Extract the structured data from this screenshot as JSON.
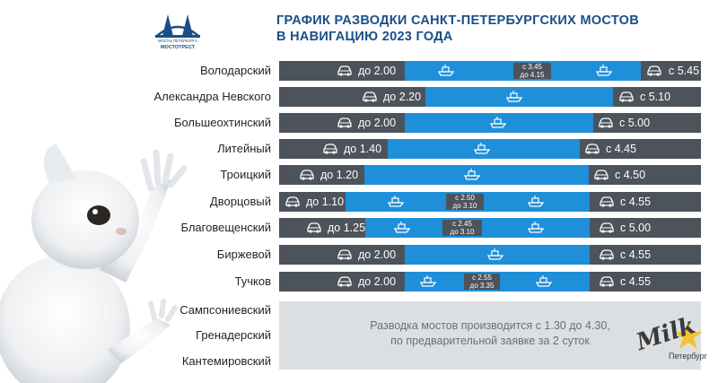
{
  "title": {
    "line1": "ГРАФИК РАЗВОДКИ САНКТ-ПЕТЕРБУРГСКИХ МОСТОВ",
    "line2": "В НАВИГАЦИЮ 2023 ГОДА"
  },
  "logo": {
    "caption_top": "МОСТЫ ПЕТЕРБУРГА",
    "caption_bottom": "МОСТОТРЕСТ",
    "icon": "bridge-logo"
  },
  "bridges": [
    {
      "name": "Володарский",
      "car_before": "до 2.00",
      "car_after": "с 5.45",
      "window": [
        "с 3.45",
        "до 4.15"
      ]
    },
    {
      "name": "Александра Невского",
      "car_before": "до 2.20",
      "car_after": "с 5.10"
    },
    {
      "name": "Большеохтинский",
      "car_before": "до 2.00",
      "car_after": "с 5.00"
    },
    {
      "name": "Литейный",
      "car_before": "до 1.40",
      "car_after": "с 4.45"
    },
    {
      "name": "Троицкий",
      "car_before": "до 1.20",
      "car_after": "с 4.50"
    },
    {
      "name": "Дворцовый",
      "car_before": "до 1.10",
      "car_after": "с 4.55",
      "window": [
        "с 2.50",
        "до 3.10"
      ]
    },
    {
      "name": "Благовещенский",
      "car_before": "до 1.25",
      "car_after": "с 5.00",
      "window": [
        "с 2.45",
        "до 3.10"
      ]
    },
    {
      "name": "Биржевой",
      "car_before": "до 2.00",
      "car_after": "с 4.55"
    },
    {
      "name": "Тучков",
      "car_before": "до 2.00",
      "car_after": "с 4.55",
      "window": [
        "с 2.55",
        "до 3.35"
      ]
    }
  ],
  "on_request": {
    "bridges": [
      "Сампсониевский",
      "Гренадерский",
      "Кантемировский"
    ],
    "text_line1": "Разводка мостов производится с 1.30 до 4.30,",
    "text_line2": "по предварительной заявке за 2 суток"
  },
  "watermark": {
    "line1": "Milk",
    "line2": "Петербург"
  },
  "colors": {
    "title": "#1a4f86",
    "car_segment": "#4d535a",
    "boat_segment": "#1f8fda",
    "request_box": "#dcdfe2"
  },
  "icons": {
    "car": "car-icon",
    "boat": "boat-icon",
    "mascot": "white-cat-photo"
  }
}
